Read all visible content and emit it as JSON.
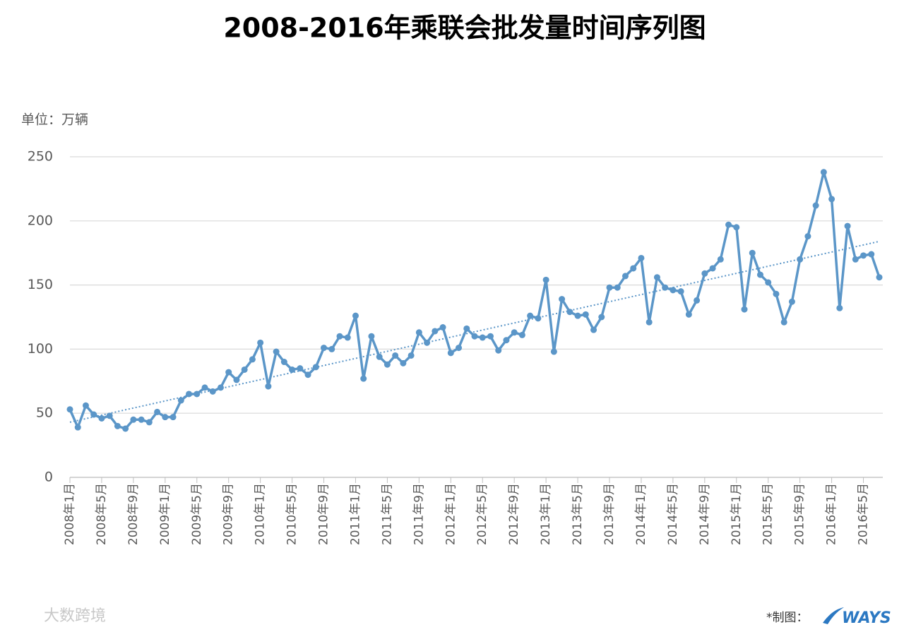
{
  "chart_data": {
    "type": "line",
    "title": "2008-2016年乘联会批发量时间序列图",
    "y_unit_label": "单位：万辆",
    "footer_label": "*制图：",
    "logo_text": "WAYS",
    "watermark": "大数跨境",
    "categories": [
      "2008年1月",
      null,
      null,
      null,
      "2008年5月",
      null,
      null,
      null,
      "2008年9月",
      null,
      null,
      null,
      "2009年1月",
      null,
      null,
      null,
      "2009年5月",
      null,
      null,
      null,
      "2009年9月",
      null,
      null,
      null,
      "2010年1月",
      null,
      null,
      null,
      "2010年5月",
      null,
      null,
      null,
      "2010年9月",
      null,
      null,
      null,
      "2011年1月",
      null,
      null,
      null,
      "2011年5月",
      null,
      null,
      null,
      "2011年9月",
      null,
      null,
      null,
      "2012年1月",
      null,
      null,
      null,
      "2012年5月",
      null,
      null,
      null,
      "2012年9月",
      null,
      null,
      null,
      "2013年1月",
      null,
      null,
      null,
      "2013年5月",
      null,
      null,
      null,
      "2013年9月",
      null,
      null,
      null,
      "2014年1月",
      null,
      null,
      null,
      "2014年5月",
      null,
      null,
      null,
      "2014年9月",
      null,
      null,
      null,
      "2015年1月",
      null,
      null,
      null,
      "2015年5月",
      null,
      null,
      null,
      "2015年9月",
      null,
      null,
      null,
      "2016年1月",
      null,
      null,
      null,
      "2016年5月",
      null,
      null
    ],
    "series": [
      {
        "color": "#5b96c8",
        "values": [
          53,
          39,
          56,
          49,
          46,
          48,
          40,
          38,
          45,
          45,
          43,
          51,
          47,
          47,
          60,
          65,
          65,
          70,
          67,
          70,
          82,
          76,
          84,
          92,
          105,
          71,
          98,
          90,
          84,
          85,
          80,
          86,
          101,
          100,
          110,
          109,
          126,
          77,
          110,
          94,
          88,
          95,
          89,
          95,
          113,
          105,
          114,
          117,
          97,
          101,
          116,
          110,
          109,
          110,
          99,
          107,
          113,
          111,
          126,
          124,
          154,
          98,
          139,
          129,
          126,
          127,
          115,
          125,
          148,
          148,
          157,
          163,
          171,
          121,
          156,
          148,
          146,
          145,
          127,
          138,
          159,
          163,
          170,
          197,
          195,
          131,
          175,
          158,
          152,
          143,
          121,
          137,
          170,
          188,
          212,
          238,
          217,
          132,
          196,
          170,
          173,
          174,
          156
        ]
      }
    ],
    "trendline": {
      "color": "#5b96c8",
      "values": [
        43,
        184
      ]
    },
    "ylim": [
      0,
      250
    ],
    "yticks": [
      0,
      50,
      100,
      150,
      200,
      250
    ],
    "grid": true
  }
}
